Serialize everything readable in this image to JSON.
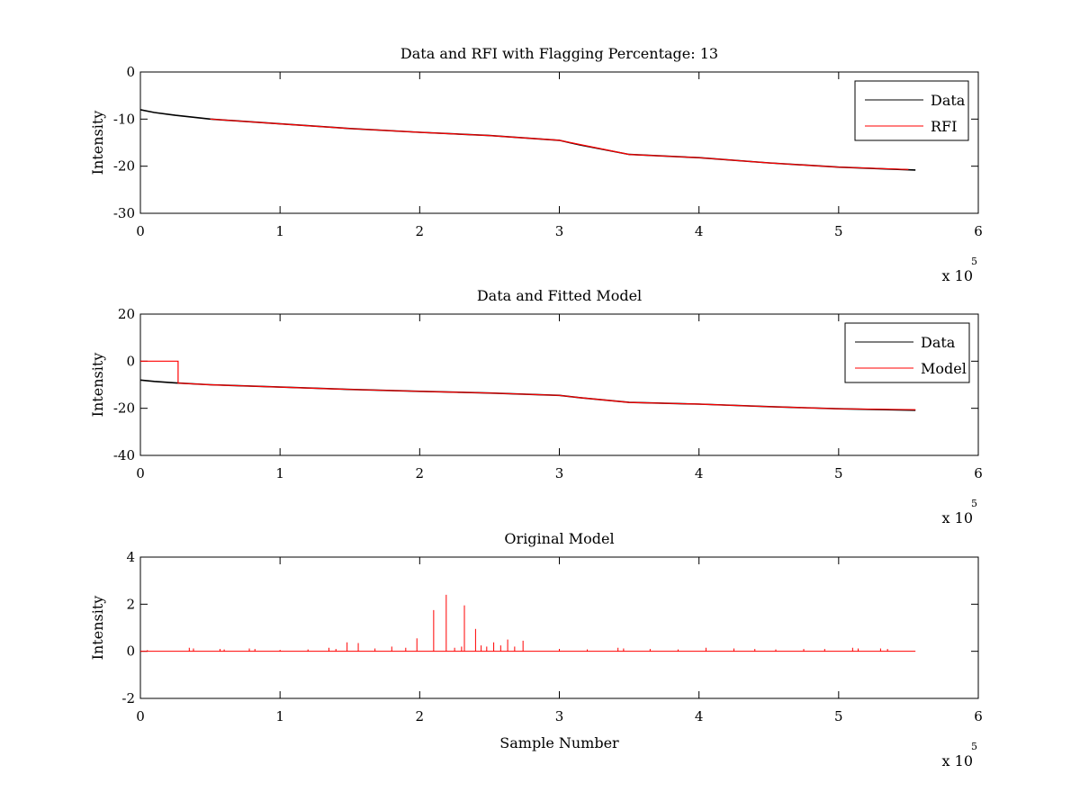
{
  "chart_data": [
    {
      "type": "line",
      "title": "Data and RFI with Flagging Percentage: 13",
      "xlabel": "",
      "ylabel": "Intensity",
      "xlim": [
        0,
        600000
      ],
      "ylim": [
        -30,
        0
      ],
      "x_ticks": [
        0,
        1,
        2,
        3,
        4,
        5,
        6
      ],
      "y_ticks": [
        0,
        -10,
        -20,
        -30
      ],
      "x_exponent_base": "x 10",
      "x_exponent_power": "5",
      "legend": "top-right",
      "grid": false,
      "series": [
        {
          "name": "Data",
          "color": "#000000",
          "x": [
            0,
            10000,
            25000,
            50000,
            100000,
            150000,
            200000,
            250000,
            300000,
            315000,
            350000,
            400000,
            450000,
            500000,
            555000
          ],
          "y": [
            -8,
            -8.6,
            -9.2,
            -10,
            -11,
            -12,
            -12.8,
            -13.5,
            -14.5,
            -15.5,
            -17.5,
            -18.2,
            -19.3,
            -20.2,
            -20.8
          ]
        },
        {
          "name": "RFI",
          "color": "#ff0000",
          "x": [
            50000,
            100000,
            150000,
            200000,
            250000,
            300000,
            350000,
            400000,
            450000,
            500000,
            550000
          ],
          "y": [
            -10,
            -11,
            -12,
            -12.8,
            -13.5,
            -14.5,
            -17.5,
            -18.2,
            -19.3,
            -20.2,
            -20.7
          ]
        }
      ]
    },
    {
      "type": "line",
      "title": "Data and Fitted Model",
      "xlabel": "",
      "ylabel": "Intensity",
      "xlim": [
        0,
        600000
      ],
      "ylim": [
        -40,
        20
      ],
      "x_ticks": [
        0,
        1,
        2,
        3,
        4,
        5,
        6
      ],
      "y_ticks": [
        20,
        0,
        -20,
        -40
      ],
      "x_exponent_base": "x 10",
      "x_exponent_power": "5",
      "legend": "top-right",
      "grid": false,
      "series": [
        {
          "name": "Data",
          "color": "#000000",
          "x": [
            0,
            10000,
            25000,
            50000,
            100000,
            150000,
            200000,
            250000,
            300000,
            315000,
            350000,
            400000,
            450000,
            500000,
            555000
          ],
          "y": [
            -8,
            -8.6,
            -9.2,
            -10,
            -11,
            -12,
            -12.8,
            -13.5,
            -14.5,
            -15.5,
            -17.5,
            -18.2,
            -19.3,
            -20.2,
            -20.8
          ]
        },
        {
          "name": "Model",
          "color": "#ff0000",
          "x": [
            0,
            27000,
            27000,
            50000,
            100000,
            150000,
            200000,
            250000,
            300000,
            315000,
            350000,
            400000,
            450000,
            500000,
            555000
          ],
          "y": [
            0,
            0,
            -9.3,
            -10,
            -11,
            -12,
            -12.8,
            -13.5,
            -14.5,
            -15.5,
            -17.5,
            -18.2,
            -19.3,
            -20.2,
            -20.6
          ]
        }
      ]
    },
    {
      "type": "line",
      "title": "Original Model",
      "xlabel": "Sample Number",
      "ylabel": "Intensity",
      "xlim": [
        0,
        600000
      ],
      "ylim": [
        -2,
        4
      ],
      "x_ticks": [
        0,
        1,
        2,
        3,
        4,
        5,
        6
      ],
      "y_ticks": [
        4,
        2,
        0,
        -2
      ],
      "x_exponent_base": "x 10",
      "x_exponent_power": "5",
      "grid": false,
      "baseline": {
        "x": [
          0,
          555000
        ],
        "y": 0
      },
      "series": [
        {
          "name": "",
          "color": "#ff0000",
          "spikes": [
            {
              "x": 5000,
              "y": 0.05
            },
            {
              "x": 35000,
              "y": 0.15
            },
            {
              "x": 38000,
              "y": 0.12
            },
            {
              "x": 57000,
              "y": 0.1
            },
            {
              "x": 60000,
              "y": 0.08
            },
            {
              "x": 78000,
              "y": 0.12
            },
            {
              "x": 82000,
              "y": 0.1
            },
            {
              "x": 100000,
              "y": 0.06
            },
            {
              "x": 120000,
              "y": 0.08
            },
            {
              "x": 135000,
              "y": 0.15
            },
            {
              "x": 140000,
              "y": 0.1
            },
            {
              "x": 148000,
              "y": 0.38
            },
            {
              "x": 156000,
              "y": 0.35
            },
            {
              "x": 168000,
              "y": 0.12
            },
            {
              "x": 180000,
              "y": 0.2
            },
            {
              "x": 190000,
              "y": 0.15
            },
            {
              "x": 198000,
              "y": 0.55
            },
            {
              "x": 210000,
              "y": 1.75
            },
            {
              "x": 219000,
              "y": 2.4
            },
            {
              "x": 225000,
              "y": 0.15
            },
            {
              "x": 230000,
              "y": 0.2
            },
            {
              "x": 232000,
              "y": 1.95
            },
            {
              "x": 240000,
              "y": 0.95
            },
            {
              "x": 244000,
              "y": 0.25
            },
            {
              "x": 248000,
              "y": 0.2
            },
            {
              "x": 253000,
              "y": 0.38
            },
            {
              "x": 258000,
              "y": 0.25
            },
            {
              "x": 263000,
              "y": 0.5
            },
            {
              "x": 268000,
              "y": 0.2
            },
            {
              "x": 274000,
              "y": 0.45
            },
            {
              "x": 300000,
              "y": 0.1
            },
            {
              "x": 320000,
              "y": 0.08
            },
            {
              "x": 342000,
              "y": 0.15
            },
            {
              "x": 346000,
              "y": 0.12
            },
            {
              "x": 365000,
              "y": 0.1
            },
            {
              "x": 385000,
              "y": 0.08
            },
            {
              "x": 405000,
              "y": 0.15
            },
            {
              "x": 425000,
              "y": 0.12
            },
            {
              "x": 440000,
              "y": 0.1
            },
            {
              "x": 455000,
              "y": 0.08
            },
            {
              "x": 475000,
              "y": 0.1
            },
            {
              "x": 490000,
              "y": 0.1
            },
            {
              "x": 510000,
              "y": 0.15
            },
            {
              "x": 514000,
              "y": 0.12
            },
            {
              "x": 530000,
              "y": 0.12
            },
            {
              "x": 535000,
              "y": 0.1
            }
          ]
        }
      ]
    }
  ]
}
